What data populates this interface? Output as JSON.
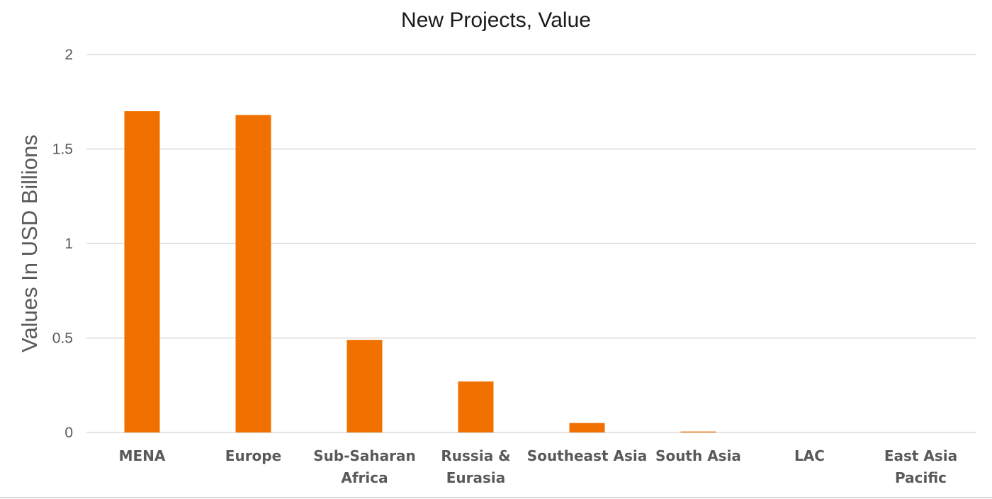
{
  "chart_data": {
    "type": "bar",
    "title": "New Projects, Value",
    "xlabel": "",
    "ylabel": "Values In USD Billions",
    "categories": [
      [
        "MENA"
      ],
      [
        "Europe"
      ],
      [
        "Sub-Saharan",
        "Africa"
      ],
      [
        "Russia &",
        "Eurasia"
      ],
      [
        "Southeast Asia"
      ],
      [
        "South Asia"
      ],
      [
        "LAC"
      ],
      [
        "East Asia",
        "Pacific"
      ]
    ],
    "values": [
      1.7,
      1.68,
      0.49,
      0.27,
      0.05,
      0.005,
      0,
      0
    ],
    "ylim": [
      0,
      2
    ],
    "yticks": [
      "0",
      "0.5",
      "1",
      "1.5",
      "2"
    ],
    "ytick_values": [
      0,
      0.5,
      1,
      1.5,
      2
    ],
    "grid": true,
    "legend": "none",
    "colors": {
      "bar": "#f07000",
      "grid": "#d9d9d9",
      "tick_text": "#595959"
    }
  }
}
